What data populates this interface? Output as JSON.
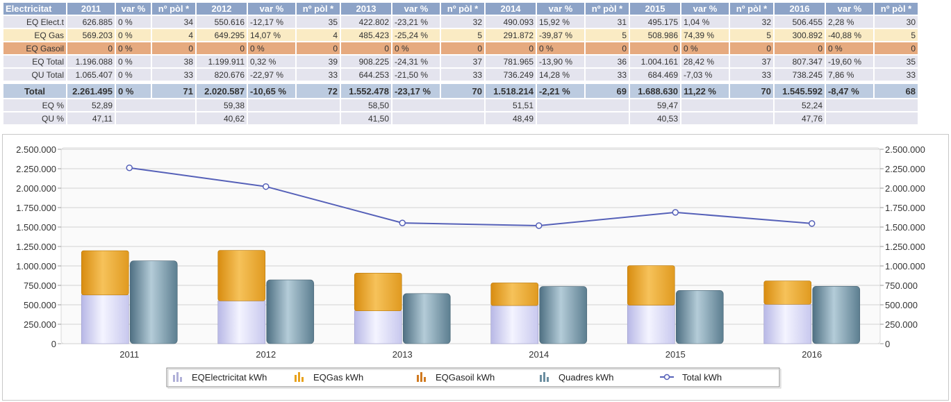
{
  "table": {
    "corner": "Electricitat",
    "headers": [
      "2011",
      "var %",
      "nº pòl *",
      "2012",
      "var %",
      "nº pòl *",
      "2013",
      "var %",
      "nº pòl *",
      "2014",
      "var %",
      "nº pòl *",
      "2015",
      "var %",
      "nº pòl *",
      "2016",
      "var %",
      "nº pòl *"
    ],
    "rows": [
      {
        "label": "EQ Elect.t",
        "cells": [
          "626.885",
          "0 %",
          "34",
          "550.616",
          "-12,17 %",
          "35",
          "422.802",
          "-23,21 %",
          "32",
          "490.093",
          "15,92 %",
          "31",
          "495.175",
          "1,04 %",
          "32",
          "506.455",
          "2,28 %",
          "30"
        ]
      },
      {
        "label": "EQ Gas",
        "cells": [
          "569.203",
          "0 %",
          "4",
          "649.295",
          "14,07 %",
          "4",
          "485.423",
          "-25,24 %",
          "5",
          "291.872",
          "-39,87 %",
          "5",
          "508.986",
          "74,39 %",
          "5",
          "300.892",
          "-40,88 %",
          "5"
        ]
      },
      {
        "label": "EQ Gasoil",
        "cells": [
          "0",
          "0 %",
          "0",
          "0",
          "0 %",
          "0",
          "0",
          "0 %",
          "0",
          "0",
          "0 %",
          "0",
          "0",
          "0 %",
          "0",
          "0",
          "0 %",
          "0"
        ]
      },
      {
        "label": "EQ Total",
        "cells": [
          "1.196.088",
          "0 %",
          "38",
          "1.199.911",
          "0,32 %",
          "39",
          "908.225",
          "-24,31 %",
          "37",
          "781.965",
          "-13,90 %",
          "36",
          "1.004.161",
          "28,42 %",
          "37",
          "807.347",
          "-19,60 %",
          "35"
        ]
      },
      {
        "label": "QU Total",
        "cells": [
          "1.065.407",
          "0 %",
          "33",
          "820.676",
          "-22,97 %",
          "33",
          "644.253",
          "-21,50 %",
          "33",
          "736.249",
          "14,28 %",
          "33",
          "684.469",
          "-7,03 %",
          "33",
          "738.245",
          "7,86 %",
          "33"
        ]
      }
    ],
    "total": {
      "label": "Total",
      "cells": [
        "2.261.495",
        "0 %",
        "71",
        "2.020.587",
        "-10,65 %",
        "72",
        "1.552.478",
        "-23,17 %",
        "70",
        "1.518.214",
        "-2,21 %",
        "69",
        "1.688.630",
        "11,22 %",
        "70",
        "1.545.592",
        "-8,47 %",
        "68"
      ]
    },
    "pct_rows": [
      {
        "label": "EQ %",
        "values": [
          "52,89",
          "59,38",
          "58,50",
          "51,51",
          "59,47",
          "52,24"
        ]
      },
      {
        "label": "QU %",
        "values": [
          "47,11",
          "40,62",
          "41,50",
          "48,49",
          "40,53",
          "47,76"
        ]
      }
    ]
  },
  "chart_data": {
    "type": "bar",
    "categories": [
      "2011",
      "2012",
      "2013",
      "2014",
      "2015",
      "2016"
    ],
    "series": [
      {
        "name": "EQElectricitat kWh",
        "kind": "stacked-bar",
        "stack": "EQ",
        "color": "#c8c8f0",
        "values": [
          626885,
          550616,
          422802,
          490093,
          495175,
          506455
        ]
      },
      {
        "name": "EQGas kWh",
        "kind": "stacked-bar",
        "stack": "EQ",
        "color": "#e8a21c",
        "values": [
          569203,
          649295,
          485423,
          291872,
          508986,
          300892
        ]
      },
      {
        "name": "EQGasoil kWh",
        "kind": "stacked-bar",
        "stack": "EQ",
        "color": "#d07a20",
        "values": [
          0,
          0,
          0,
          0,
          0,
          0
        ]
      },
      {
        "name": "Quadres kWh",
        "kind": "bar",
        "stack": "QU",
        "color": "#6b8ea0",
        "values": [
          1065407,
          820676,
          644253,
          736249,
          684469,
          738245
        ]
      },
      {
        "name": "Total kWh",
        "kind": "line",
        "color": "#5560b8",
        "values": [
          2261495,
          2020587,
          1552478,
          1518214,
          1688630,
          1545592
        ]
      }
    ],
    "ylim": [
      0,
      2500000
    ],
    "yticks": [
      "0",
      "250.000",
      "500.000",
      "750.000",
      "1.000.000",
      "1.250.000",
      "1.500.000",
      "1.750.000",
      "2.000.000",
      "2.250.000",
      "2.500.000"
    ],
    "ytick_values": [
      0,
      250000,
      500000,
      750000,
      1000000,
      1250000,
      1500000,
      1750000,
      2000000,
      2250000,
      2500000
    ],
    "grid": true,
    "legend": "bottom-center",
    "colors": {
      "bar_elec": "#c8c8f0",
      "bar_gas": "#e8a21c",
      "bar_gasoil": "#d07a20",
      "bar_qu": "#6b8ea0",
      "line": "#5560b8"
    }
  }
}
